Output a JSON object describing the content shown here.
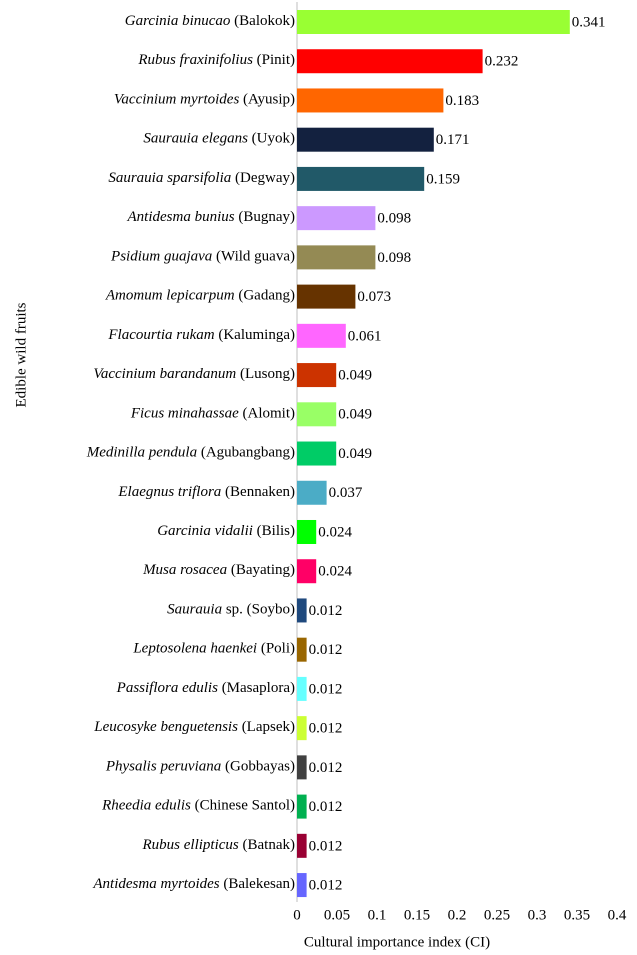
{
  "chart_data": {
    "type": "barh",
    "ylabel": "Edible wild fruits",
    "xlabel": "Cultural importance index (CI)",
    "categories": [
      {
        "species": "Garcinia binucao",
        "local": "(Balokok)"
      },
      {
        "species": "Rubus fraxinifolius",
        "local": "(Pinit)"
      },
      {
        "species": "Vaccinium myrtoides",
        "local": "(Ayusip)"
      },
      {
        "species": "Saurauia elegans",
        "local": "(Uyok)"
      },
      {
        "species": "Saurauia sparsifolia",
        "local": "(Degway)"
      },
      {
        "species": "Antidesma bunius",
        "local": "(Bugnay)"
      },
      {
        "species": "Psidium guajava",
        "local": "(Wild guava)"
      },
      {
        "species": "Amomum lepicarpum",
        "local": "(Gadang)"
      },
      {
        "species": "Flacourtia rukam",
        "local": "(Kaluminga)"
      },
      {
        "species": "Vaccinium barandanum",
        "local": "(Lusong)"
      },
      {
        "species": "Ficus minahassae",
        "local": "(Alomit)"
      },
      {
        "species": "Medinilla pendula",
        "local": "(Agubangbang)"
      },
      {
        "species": "Elaegnus triflora",
        "local": "(Bennaken)"
      },
      {
        "species": "Garcinia vidalii",
        "local": "(Bilis)"
      },
      {
        "species": "Musa rosacea",
        "local": "(Bayating)"
      },
      {
        "species": "Saurauia",
        "local": "sp. (Soybo)"
      },
      {
        "species": "Leptosolena haenkei",
        "local": "(Poli)"
      },
      {
        "species": "Passiflora edulis",
        "local": "(Masaplora)"
      },
      {
        "species": "Leucosyke benguetensis",
        "local": "(Lapsek)"
      },
      {
        "species": "Physalis peruviana",
        "local": "(Gobbayas)"
      },
      {
        "species": "Rheedia edulis",
        "local": "(Chinese Santol)"
      },
      {
        "species": "Rubus ellipticus",
        "local": "(Batnak)"
      },
      {
        "species": "Antidesma myrtoides",
        "local": "(Balekesan)"
      }
    ],
    "values": [
      0.341,
      0.232,
      0.183,
      0.171,
      0.159,
      0.098,
      0.098,
      0.073,
      0.061,
      0.049,
      0.049,
      0.049,
      0.037,
      0.024,
      0.024,
      0.012,
      0.012,
      0.012,
      0.012,
      0.012,
      0.012,
      0.012,
      0.012
    ],
    "colors": [
      "#99ff33",
      "#ff0000",
      "#ff6600",
      "#13213f",
      "#215968",
      "#cc99ff",
      "#948a54",
      "#663300",
      "#ff66ff",
      "#cc3300",
      "#99ff66",
      "#00cc66",
      "#4bacc6",
      "#00ff00",
      "#ff0066",
      "#1f497d",
      "#996600",
      "#66ffff",
      "#ccff33",
      "#404040",
      "#00b050",
      "#990033",
      "#6666ff"
    ],
    "xlim": [
      0,
      0.4
    ],
    "xticks": [
      0,
      0.05,
      0.1,
      0.15,
      0.2,
      0.25,
      0.3,
      0.35,
      0.4
    ]
  }
}
